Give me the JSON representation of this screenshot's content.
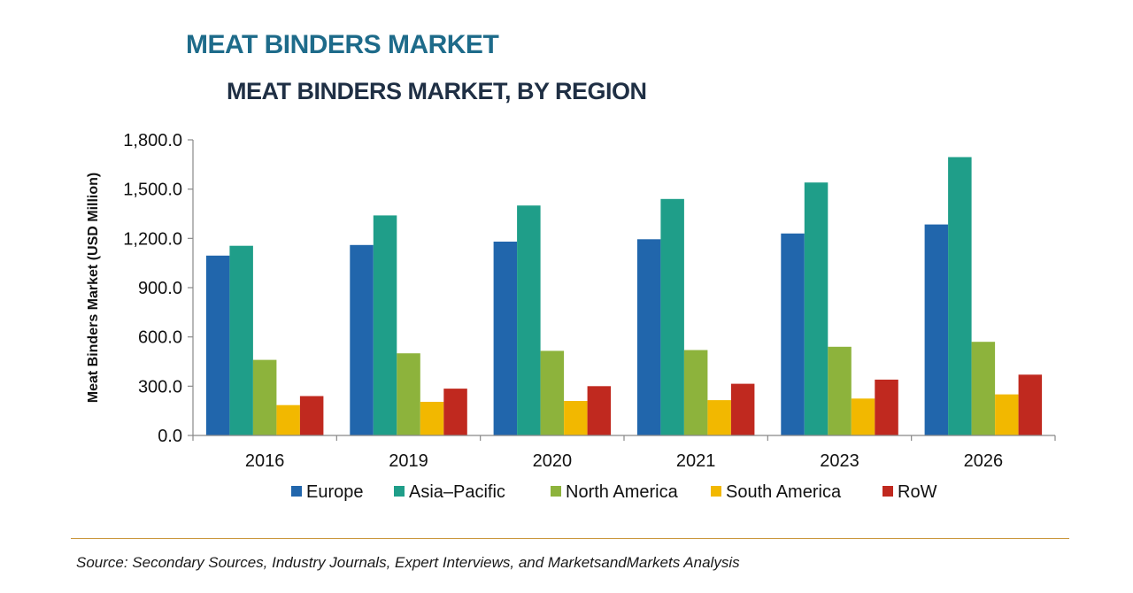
{
  "page_title": "MEAT BINDERS MARKET",
  "source": "Source: Secondary Sources, Industry Journals, Expert Interviews, and MarketsandMarkets Analysis",
  "colors": {
    "title": "#1e6b8a",
    "chart_title": "#1f2f44",
    "axis": "#888888",
    "separator": "#c9963a"
  },
  "chart_data": {
    "type": "bar",
    "title": "MEAT BINDERS MARKET, BY REGION",
    "xlabel": "",
    "ylabel": "Meat Binders Market (USD Million)",
    "ylim": [
      0,
      1800
    ],
    "yticks": [
      0,
      300,
      600,
      900,
      1200,
      1500,
      1800
    ],
    "ytick_labels": [
      "0.0",
      "300.0",
      "600.0",
      "900.0",
      "1,200.0",
      "1,500.0",
      "1,800.0"
    ],
    "grid": false,
    "legend_position": "bottom",
    "categories": [
      "2016",
      "2019",
      "2020",
      "2021",
      "2023",
      "2026"
    ],
    "series": [
      {
        "name": "Europe",
        "color": "#2166ac",
        "values": [
          1095,
          1160,
          1180,
          1195,
          1230,
          1285
        ]
      },
      {
        "name": "Asia–Pacific",
        "color": "#1f9e89",
        "values": [
          1155,
          1340,
          1400,
          1440,
          1540,
          1695
        ]
      },
      {
        "name": "North America",
        "color": "#8db33c",
        "values": [
          460,
          500,
          515,
          520,
          540,
          570
        ]
      },
      {
        "name": "South America",
        "color": "#f2b800",
        "values": [
          185,
          205,
          210,
          215,
          225,
          250
        ]
      },
      {
        "name": "RoW",
        "color": "#c0291f",
        "values": [
          240,
          285,
          300,
          315,
          340,
          370
        ]
      }
    ]
  }
}
